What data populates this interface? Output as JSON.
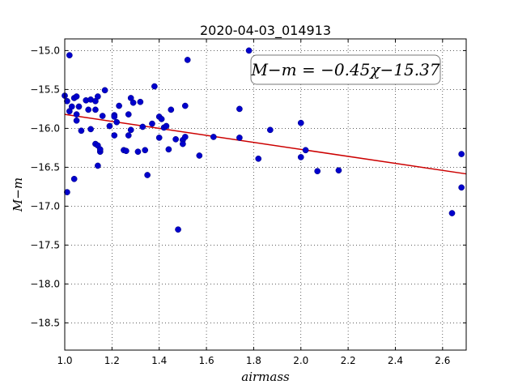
{
  "chart_data": {
    "type": "scatter",
    "title": "2020-04-03_014913",
    "xlabel": "airmass",
    "ylabel": "M−m",
    "xlim": [
      1.0,
      2.7
    ],
    "ylim": [
      -18.85,
      -14.85
    ],
    "y_inverted": true,
    "grid": true,
    "x_ticks": [
      1.0,
      1.2,
      1.4,
      1.6,
      1.8,
      2.0,
      2.2,
      2.4,
      2.6
    ],
    "x_tick_labels": [
      "1.0",
      "1.2",
      "1.4",
      "1.6",
      "1.8",
      "2.0",
      "2.2",
      "2.4",
      "2.6"
    ],
    "y_ticks": [
      -15.0,
      -15.5,
      -16.0,
      -16.5,
      -17.0,
      -17.5,
      -18.0,
      -18.5
    ],
    "y_tick_labels": [
      "−15.0",
      "−15.5",
      "−16.0",
      "−16.5",
      "−17.0",
      "−17.5",
      "−18.0",
      "−18.5"
    ],
    "annotation": "M−m = −0.45χ−15.37",
    "fit": {
      "slope": -0.45,
      "intercept": -15.37,
      "color": "#cc0000"
    },
    "marker_color": "#0000cc",
    "series": [
      {
        "points": [
          [
            1.0,
            -15.58
          ],
          [
            1.01,
            -15.65
          ],
          [
            1.01,
            -16.82
          ],
          [
            1.02,
            -15.06
          ],
          [
            1.02,
            -15.78
          ],
          [
            1.03,
            -15.72
          ],
          [
            1.04,
            -15.61
          ],
          [
            1.05,
            -15.82
          ],
          [
            1.05,
            -15.59
          ],
          [
            1.05,
            -15.9
          ],
          [
            1.04,
            -16.65
          ],
          [
            1.06,
            -15.72
          ],
          [
            1.07,
            -16.03
          ],
          [
            1.09,
            -15.64
          ],
          [
            1.1,
            -15.76
          ],
          [
            1.11,
            -15.63
          ],
          [
            1.11,
            -16.01
          ],
          [
            1.13,
            -16.2
          ],
          [
            1.13,
            -15.65
          ],
          [
            1.13,
            -15.76
          ],
          [
            1.14,
            -15.59
          ],
          [
            1.14,
            -16.22
          ],
          [
            1.14,
            -16.48
          ],
          [
            1.15,
            -16.3
          ],
          [
            1.15,
            -16.27
          ],
          [
            1.16,
            -15.84
          ],
          [
            1.17,
            -15.51
          ],
          [
            1.19,
            -15.97
          ],
          [
            1.21,
            -15.83
          ],
          [
            1.21,
            -15.85
          ],
          [
            1.21,
            -16.09
          ],
          [
            1.22,
            -15.92
          ],
          [
            1.23,
            -15.71
          ],
          [
            1.25,
            -16.28
          ],
          [
            1.26,
            -16.29
          ],
          [
            1.27,
            -15.82
          ],
          [
            1.27,
            -16.09
          ],
          [
            1.28,
            -15.61
          ],
          [
            1.28,
            -16.02
          ],
          [
            1.29,
            -15.67
          ],
          [
            1.31,
            -16.3
          ],
          [
            1.32,
            -15.66
          ],
          [
            1.33,
            -15.98
          ],
          [
            1.34,
            -16.28
          ],
          [
            1.35,
            -16.6
          ],
          [
            1.37,
            -15.94
          ],
          [
            1.38,
            -15.46
          ],
          [
            1.4,
            -15.85
          ],
          [
            1.4,
            -16.12
          ],
          [
            1.41,
            -15.88
          ],
          [
            1.42,
            -15.99
          ],
          [
            1.43,
            -15.97
          ],
          [
            1.44,
            -16.27
          ],
          [
            1.45,
            -15.76
          ],
          [
            1.47,
            -16.14
          ],
          [
            1.48,
            -17.3
          ],
          [
            1.5,
            -16.15
          ],
          [
            1.5,
            -16.2
          ],
          [
            1.51,
            -15.71
          ],
          [
            1.51,
            -16.11
          ],
          [
            1.52,
            -15.12
          ],
          [
            1.57,
            -16.35
          ],
          [
            1.63,
            -16.11
          ],
          [
            1.74,
            -15.75
          ],
          [
            1.74,
            -16.12
          ],
          [
            1.78,
            -15.0
          ],
          [
            1.82,
            -16.39
          ],
          [
            1.87,
            -16.02
          ],
          [
            2.0,
            -15.93
          ],
          [
            2.0,
            -16.37
          ],
          [
            2.02,
            -16.28
          ],
          [
            2.07,
            -16.55
          ],
          [
            2.16,
            -16.54
          ],
          [
            2.64,
            -17.09
          ],
          [
            2.68,
            -16.33
          ],
          [
            2.68,
            -16.76
          ]
        ]
      }
    ]
  }
}
